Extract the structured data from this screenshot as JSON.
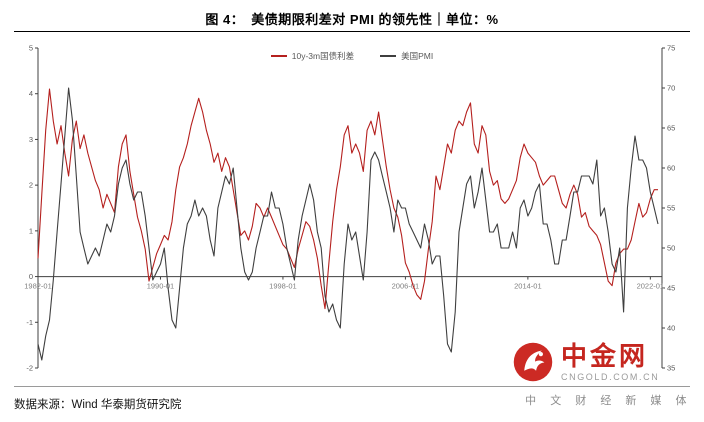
{
  "header": {
    "title": "图 4：　美债期限利差对 PMI 的领先性｜单位：%"
  },
  "legend": [
    {
      "label": "10y-3m国债利差",
      "color": "#b5201e"
    },
    {
      "label": "美国PMI",
      "color": "#3f3f3f"
    }
  ],
  "footer": {
    "source": "数据来源：Wind 华泰期货研究院"
  },
  "logo": {
    "name": "中金网",
    "url": "CNGOLD.COM.CN",
    "tagline": "中 文 财 经 新 媒 体",
    "brand_color": "#c5261f"
  },
  "chart_data": {
    "type": "line",
    "title": "美债期限利差对 PMI 的领先性",
    "unit": "%",
    "grid": false,
    "legend_position": "top-center",
    "x_start": 1982.0,
    "x_step": 0.25,
    "x_end": 2022.5,
    "x_ticks": [
      {
        "t": 1982.0,
        "label": "1982-01"
      },
      {
        "t": 1990.0,
        "label": "1990-01"
      },
      {
        "t": 1998.0,
        "label": "1998-01"
      },
      {
        "t": 2006.0,
        "label": "2006-01"
      },
      {
        "t": 2014.0,
        "label": "2014-01"
      },
      {
        "t": 2022.0,
        "label": "2022-01"
      }
    ],
    "left_axis": {
      "min": -2,
      "max": 5,
      "ticks": [
        5,
        4,
        3,
        2,
        1,
        0,
        -1,
        -2
      ],
      "series": "10y-3m国债利差"
    },
    "right_axis": {
      "min": 35,
      "max": 75,
      "ticks": [
        75,
        70,
        65,
        60,
        55,
        50,
        45,
        40,
        35
      ],
      "series": "美国PMI"
    },
    "series": [
      {
        "name": "10y-3m国债利差",
        "key": "spread-line",
        "axis": "left",
        "color": "#b5201e",
        "values": [
          0.4,
          1.8,
          3.2,
          4.1,
          3.4,
          2.9,
          3.3,
          2.7,
          2.2,
          3.0,
          3.4,
          2.8,
          3.1,
          2.7,
          2.4,
          2.1,
          1.9,
          1.5,
          1.8,
          1.6,
          1.4,
          2.4,
          2.9,
          3.1,
          2.3,
          1.8,
          1.3,
          1.0,
          0.6,
          -0.1,
          0.2,
          0.5,
          0.7,
          0.9,
          0.8,
          1.2,
          1.9,
          2.4,
          2.6,
          2.9,
          3.3,
          3.6,
          3.9,
          3.6,
          3.2,
          2.9,
          2.5,
          2.7,
          2.3,
          2.6,
          2.4,
          1.9,
          1.4,
          0.9,
          1.0,
          0.8,
          1.1,
          1.6,
          1.5,
          1.3,
          1.5,
          1.3,
          1.1,
          0.9,
          0.7,
          0.6,
          0.4,
          0.2,
          0.6,
          0.9,
          1.2,
          1.1,
          0.8,
          0.4,
          -0.2,
          -0.7,
          0.3,
          1.2,
          1.9,
          2.4,
          3.1,
          3.3,
          2.7,
          2.9,
          2.7,
          2.3,
          3.2,
          3.4,
          3.1,
          3.6,
          3.0,
          2.4,
          1.9,
          1.5,
          1.3,
          0.9,
          0.3,
          0.1,
          -0.2,
          -0.4,
          -0.5,
          -0.1,
          0.6,
          1.2,
          2.2,
          1.9,
          2.4,
          2.9,
          2.7,
          3.2,
          3.4,
          3.3,
          3.6,
          3.8,
          2.9,
          2.7,
          3.3,
          3.1,
          2.3,
          2.0,
          2.1,
          1.7,
          1.6,
          1.7,
          1.9,
          2.1,
          2.6,
          2.9,
          2.7,
          2.6,
          2.5,
          2.2,
          2.0,
          2.1,
          2.2,
          2.2,
          1.9,
          1.6,
          1.5,
          1.8,
          2.0,
          1.8,
          1.3,
          1.4,
          1.1,
          1.0,
          0.9,
          0.7,
          0.3,
          -0.1,
          -0.2,
          0.3,
          0.5,
          0.6,
          0.6,
          0.8,
          1.2,
          1.6,
          1.3,
          1.4,
          1.7,
          1.9,
          1.9
        ]
      },
      {
        "name": "美国PMI",
        "key": "pmi-line",
        "axis": "right",
        "color": "#3f3f3f",
        "values": [
          38,
          36,
          39,
          41,
          46,
          52,
          58,
          64,
          70,
          66,
          59,
          52,
          50,
          48,
          49,
          50,
          49,
          51,
          53,
          52,
          54,
          58,
          60,
          61,
          58,
          56,
          57,
          57,
          54,
          50,
          46,
          47,
          48,
          50,
          45,
          41,
          40,
          45,
          50,
          53,
          54,
          56,
          54,
          55,
          54,
          51,
          49,
          55,
          57,
          59,
          58,
          60,
          55,
          50,
          47,
          46,
          47,
          50,
          52,
          54,
          54,
          57,
          55,
          55,
          53,
          50,
          48,
          46,
          51,
          54,
          56,
          58,
          56,
          52,
          50,
          44,
          42,
          43,
          41,
          40,
          48,
          53,
          51,
          52,
          49,
          46,
          52,
          61,
          62,
          61,
          59,
          57,
          55,
          52,
          56,
          55,
          55,
          53,
          52,
          51,
          50,
          53,
          51,
          48,
          49,
          49,
          44,
          38,
          37,
          42,
          52,
          55,
          58,
          59,
          55,
          57,
          60,
          56,
          52,
          52,
          53,
          50,
          50,
          50,
          52,
          50,
          55,
          56,
          54,
          55,
          57,
          58,
          53,
          53,
          51,
          48,
          48,
          51,
          51,
          54,
          57,
          57,
          59,
          59,
          59,
          58,
          61,
          54,
          55,
          52,
          48,
          47,
          50,
          42,
          55,
          60,
          64,
          61,
          61,
          60,
          57,
          55,
          53
        ]
      }
    ]
  }
}
